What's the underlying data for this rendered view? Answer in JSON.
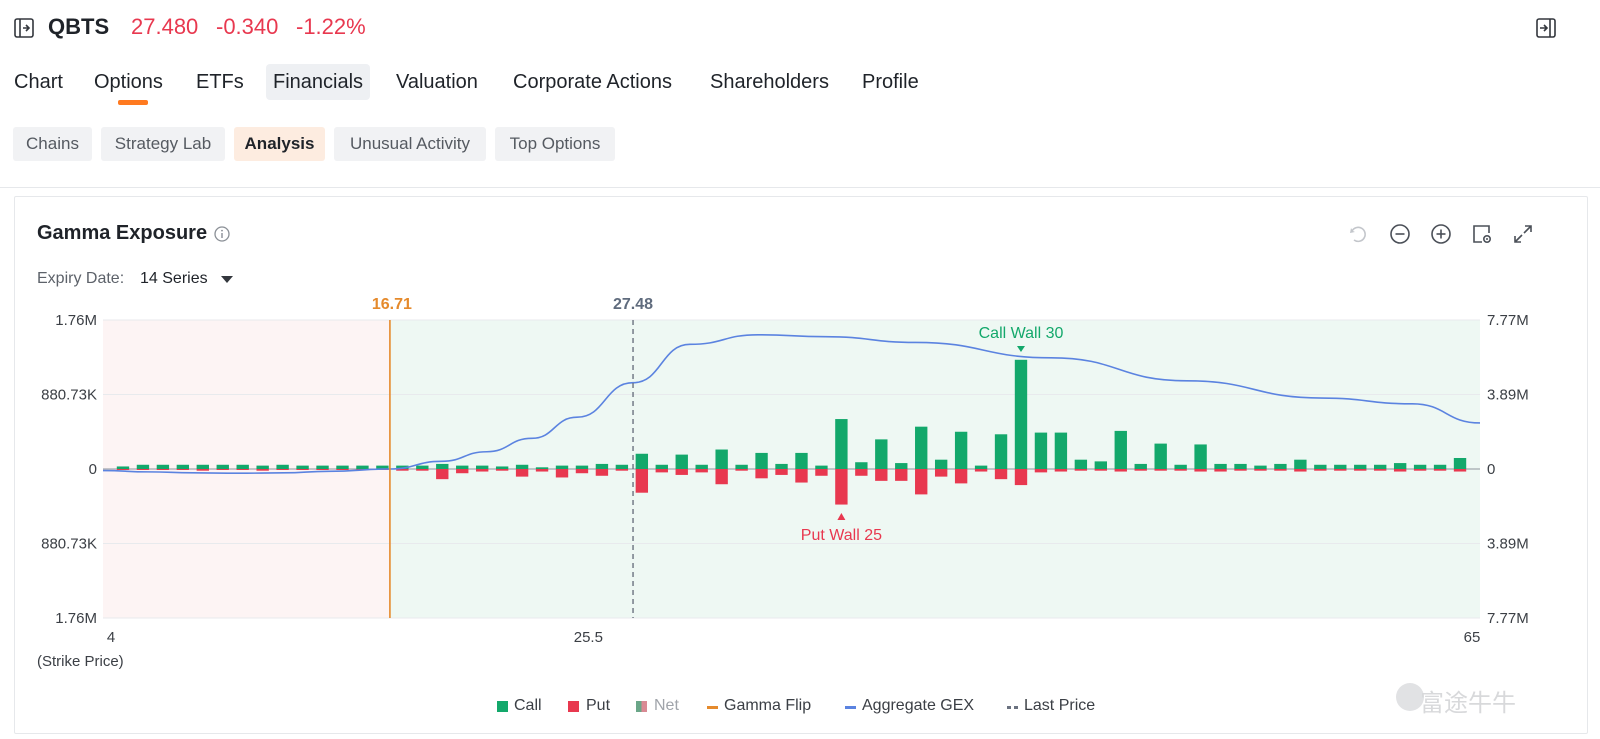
{
  "header": {
    "ticker": "QBTS",
    "last": "27.480",
    "change": "-0.340",
    "change_pct": "-1.22%"
  },
  "nav": {
    "items": [
      "Chart",
      "Options",
      "ETFs",
      "Financials",
      "Valuation",
      "Corporate Actions",
      "Shareholders",
      "Profile"
    ],
    "active": "Options"
  },
  "subtabs": {
    "items": [
      "Chains",
      "Strategy Lab",
      "Analysis",
      "Unusual Activity",
      "Top Options"
    ],
    "active": "Analysis"
  },
  "panel": {
    "title": "Gamma Exposure",
    "expiry_label": "Expiry Date:",
    "expiry_value": "14 Series"
  },
  "legend": {
    "call": "Call",
    "put": "Put",
    "net": "Net",
    "gamma_flip": "Gamma Flip",
    "aggregate": "Aggregate GEX",
    "last_price": "Last Price"
  },
  "colors": {
    "call": "#13a86b",
    "put": "#e8384f",
    "gamma_flip": "#e58a2c",
    "aggregate": "#5b83e0",
    "last_price": "#6b7280",
    "accent": "#ff7a20"
  },
  "watermark": "富途牛牛",
  "chart_data": {
    "type": "bar",
    "title": "Gamma Exposure",
    "xlabel": "(Strike Price)",
    "x_ticks": [
      "4",
      "25.5",
      "65"
    ],
    "x_range": [
      4,
      65
    ],
    "y_left_ticks": [
      "1.76M",
      "880.73K",
      "0",
      "880.73K",
      "1.76M"
    ],
    "y_right_ticks": [
      "7.77M",
      "3.89M",
      "0",
      "3.89M",
      "7.77M"
    ],
    "ylim_left": [
      -1.76,
      1.76
    ],
    "ylim_right": [
      -7.77,
      7.77
    ],
    "gamma_flip": 16.71,
    "gamma_flip_label": "16.71",
    "last_price": 27.48,
    "last_price_label": "27.48",
    "call_wall": {
      "strike": 30,
      "label": "Call Wall 30"
    },
    "put_wall": {
      "strike": 25,
      "label": "Put Wall 25"
    },
    "series": [
      {
        "name": "Call",
        "values": [
          0.03,
          0.05,
          0.05,
          0.05,
          0.05,
          0.05,
          0.05,
          0.04,
          0.05,
          0.04,
          0.04,
          0.04,
          0.04,
          0.04,
          0.04,
          0.04,
          0.06,
          0.04,
          0.04,
          0.03,
          0.05,
          0.02,
          0.04,
          0.04,
          0.06,
          0.05,
          0.18,
          0.05,
          0.17,
          0.05,
          0.23,
          0.05,
          0.19,
          0.06,
          0.19,
          0.04,
          0.59,
          0.08,
          0.35,
          0.07,
          0.5,
          0.11,
          0.44,
          0.04,
          0.41,
          1.29,
          0.43,
          0.43,
          0.11,
          0.09,
          0.45,
          0.06,
          0.3,
          0.05,
          0.29,
          0.06,
          0.06,
          0.04,
          0.06,
          0.11,
          0.05,
          0.05,
          0.05,
          0.05,
          0.07,
          0.05,
          0.05,
          0.13
        ]
      },
      {
        "name": "Put",
        "values": [
          -0.01,
          -0.01,
          -0.01,
          -0.01,
          -0.02,
          -0.01,
          -0.01,
          -0.02,
          -0.01,
          -0.01,
          -0.01,
          -0.01,
          -0.01,
          -0.01,
          -0.02,
          -0.02,
          -0.12,
          -0.05,
          -0.03,
          -0.02,
          -0.09,
          -0.03,
          -0.1,
          -0.05,
          -0.08,
          -0.02,
          -0.28,
          -0.04,
          -0.07,
          -0.04,
          -0.18,
          -0.02,
          -0.11,
          -0.07,
          -0.16,
          -0.08,
          -0.42,
          -0.08,
          -0.14,
          -0.14,
          -0.3,
          -0.09,
          -0.17,
          -0.03,
          -0.12,
          -0.19,
          -0.04,
          -0.03,
          -0.02,
          -0.02,
          -0.03,
          -0.02,
          -0.02,
          -0.02,
          -0.03,
          -0.03,
          -0.02,
          -0.02,
          -0.02,
          -0.03,
          -0.02,
          -0.02,
          -0.02,
          -0.02,
          -0.03,
          -0.02,
          -0.02,
          -0.03
        ]
      },
      {
        "name": "Aggregate GEX",
        "axis": "right",
        "x": [
          4,
          6,
          8,
          10,
          12,
          14,
          16.71,
          19,
          21,
          23,
          25,
          27.48,
          30,
          33,
          36,
          40,
          46,
          52,
          58,
          62,
          65
        ],
        "values": [
          -0.08,
          -0.15,
          -0.2,
          -0.22,
          -0.2,
          -0.12,
          0.0,
          0.4,
          0.9,
          1.6,
          2.7,
          4.5,
          6.5,
          7.0,
          6.9,
          6.6,
          5.8,
          4.6,
          3.7,
          3.4,
          2.4
        ]
      }
    ],
    "grid": true,
    "legend_position": "bottom"
  }
}
